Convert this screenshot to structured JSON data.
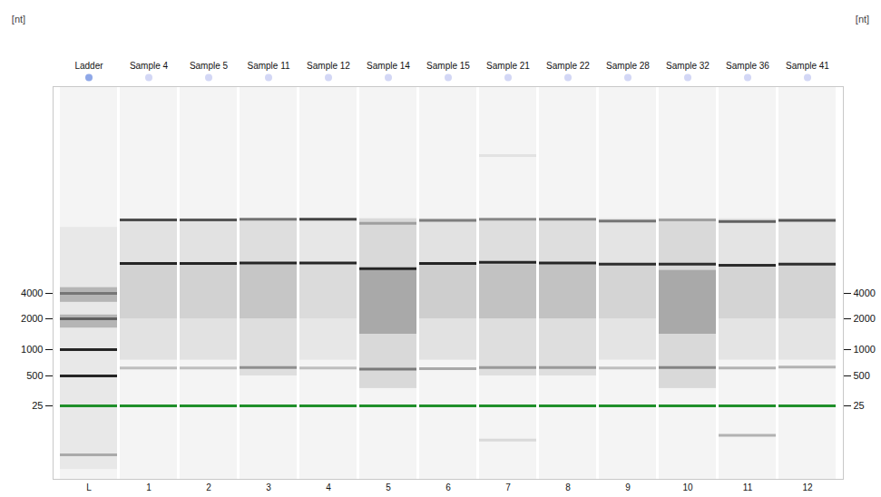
{
  "chart_data": {
    "type": "gel",
    "ylabel": "[nt]",
    "ylim": [
      10,
      40000
    ],
    "yticks": [
      25,
      500,
      1000,
      2000,
      4000
    ],
    "color": "#1a1a1a",
    "lanes": [
      {
        "name": "Ladder",
        "number": "L",
        "bands": [
          {
            "nt": 25,
            "intensity": 1,
            "color": "#1f8f2a"
          },
          {
            "nt": 500,
            "intensity": 0.95
          },
          {
            "nt": 1000,
            "intensity": 0.95
          },
          {
            "nt": 2000,
            "intensity": 0.55
          },
          {
            "nt": 4000,
            "intensity": 0.4
          },
          {
            "nt": 15,
            "intensity": 0.3
          }
        ],
        "smears": [
          {
            "from": 12,
            "to": 15500,
            "intensity": 0.05
          },
          {
            "from": 1700,
            "to": 2300,
            "intensity": 0.25
          },
          {
            "from": 3300,
            "to": 5000,
            "intensity": 0.25
          }
        ]
      },
      {
        "name": "Sample 4",
        "number": "1",
        "bands": [
          {
            "nt": 16800,
            "intensity": 0.75
          },
          {
            "nt": 9200,
            "intensity": 0.95
          },
          {
            "nt": 650,
            "intensity": 0.25
          },
          {
            "nt": 25,
            "intensity": 1,
            "color": "#1f8f2a"
          }
        ],
        "smears": [
          {
            "from": 800,
            "to": 17000,
            "intensity": 0.08
          },
          {
            "from": 2000,
            "to": 9000,
            "intensity": 0.08
          }
        ]
      },
      {
        "name": "Sample 5",
        "number": "2",
        "bands": [
          {
            "nt": 16800,
            "intensity": 0.7
          },
          {
            "nt": 9200,
            "intensity": 0.95
          },
          {
            "nt": 650,
            "intensity": 0.25
          },
          {
            "nt": 25,
            "intensity": 1,
            "color": "#1f8f2a"
          }
        ],
        "smears": [
          {
            "from": 800,
            "to": 17000,
            "intensity": 0.08
          },
          {
            "from": 2000,
            "to": 9000,
            "intensity": 0.08
          }
        ]
      },
      {
        "name": "Sample 11",
        "number": "3",
        "bands": [
          {
            "nt": 16900,
            "intensity": 0.55
          },
          {
            "nt": 9300,
            "intensity": 0.95
          },
          {
            "nt": 660,
            "intensity": 0.4
          },
          {
            "nt": 25,
            "intensity": 1,
            "color": "#1f8f2a"
          }
        ],
        "smears": [
          {
            "from": 500,
            "to": 17000,
            "intensity": 0.1
          },
          {
            "from": 2000,
            "to": 9000,
            "intensity": 0.12
          }
        ]
      },
      {
        "name": "Sample 12",
        "number": "4",
        "bands": [
          {
            "nt": 16900,
            "intensity": 0.8
          },
          {
            "nt": 9300,
            "intensity": 0.95
          },
          {
            "nt": 650,
            "intensity": 0.25
          },
          {
            "nt": 25,
            "intensity": 1,
            "color": "#1f8f2a"
          }
        ],
        "smears": [
          {
            "from": 800,
            "to": 17000,
            "intensity": 0.06
          },
          {
            "from": 2000,
            "to": 9000,
            "intensity": 0.06
          }
        ]
      },
      {
        "name": "Sample 14",
        "number": "5",
        "bands": [
          {
            "nt": 16200,
            "intensity": 0.3
          },
          {
            "nt": 8300,
            "intensity": 0.95
          },
          {
            "nt": 630,
            "intensity": 0.5
          },
          {
            "nt": 25,
            "intensity": 1,
            "color": "#1f8f2a"
          }
        ],
        "smears": [
          {
            "from": 300,
            "to": 17000,
            "intensity": 0.12
          },
          {
            "from": 1500,
            "to": 8000,
            "intensity": 0.25
          }
        ]
      },
      {
        "name": "Sample 15",
        "number": "6",
        "bands": [
          {
            "nt": 16700,
            "intensity": 0.5
          },
          {
            "nt": 9200,
            "intensity": 0.95
          },
          {
            "nt": 640,
            "intensity": 0.35
          },
          {
            "nt": 25,
            "intensity": 1,
            "color": "#1f8f2a"
          }
        ],
        "smears": [
          {
            "from": 800,
            "to": 17000,
            "intensity": 0.08
          },
          {
            "from": 2000,
            "to": 9000,
            "intensity": 0.1
          }
        ]
      },
      {
        "name": "Sample 21",
        "number": "7",
        "bands": [
          {
            "nt": 16900,
            "intensity": 0.45
          },
          {
            "nt": 9400,
            "intensity": 0.95
          },
          {
            "nt": 660,
            "intensity": 0.35
          },
          {
            "nt": 28000,
            "intensity": 0.08
          },
          {
            "nt": 18,
            "intensity": 0.12
          },
          {
            "nt": 25,
            "intensity": 1,
            "color": "#1f8f2a"
          }
        ],
        "smears": [
          {
            "from": 500,
            "to": 17000,
            "intensity": 0.1
          },
          {
            "from": 2000,
            "to": 9000,
            "intensity": 0.14
          }
        ]
      },
      {
        "name": "Sample 22",
        "number": "8",
        "bands": [
          {
            "nt": 16900,
            "intensity": 0.5
          },
          {
            "nt": 9300,
            "intensity": 0.95
          },
          {
            "nt": 660,
            "intensity": 0.35
          },
          {
            "nt": 25,
            "intensity": 1,
            "color": "#1f8f2a"
          }
        ],
        "smears": [
          {
            "from": 500,
            "to": 17000,
            "intensity": 0.1
          },
          {
            "from": 2000,
            "to": 9000,
            "intensity": 0.14
          }
        ]
      },
      {
        "name": "Sample 28",
        "number": "9",
        "bands": [
          {
            "nt": 16600,
            "intensity": 0.55
          },
          {
            "nt": 9100,
            "intensity": 0.9
          },
          {
            "nt": 650,
            "intensity": 0.25
          },
          {
            "nt": 25,
            "intensity": 1,
            "color": "#1f8f2a"
          }
        ],
        "smears": [
          {
            "from": 800,
            "to": 17000,
            "intensity": 0.07
          },
          {
            "from": 2000,
            "to": 9000,
            "intensity": 0.08
          }
        ]
      },
      {
        "name": "Sample 32",
        "number": "10",
        "bands": [
          {
            "nt": 16800,
            "intensity": 0.3
          },
          {
            "nt": 9100,
            "intensity": 0.9
          },
          {
            "nt": 660,
            "intensity": 0.45
          },
          {
            "nt": 25,
            "intensity": 1,
            "color": "#1f8f2a"
          }
        ],
        "smears": [
          {
            "from": 300,
            "to": 17000,
            "intensity": 0.12
          },
          {
            "from": 1500,
            "to": 8000,
            "intensity": 0.25
          }
        ]
      },
      {
        "name": "Sample 36",
        "number": "11",
        "bands": [
          {
            "nt": 16500,
            "intensity": 0.65
          },
          {
            "nt": 8900,
            "intensity": 0.9
          },
          {
            "nt": 650,
            "intensity": 0.3
          },
          {
            "nt": 19,
            "intensity": 0.3
          },
          {
            "nt": 25,
            "intensity": 1,
            "color": "#1f8f2a"
          }
        ],
        "smears": [
          {
            "from": 800,
            "to": 17000,
            "intensity": 0.07
          },
          {
            "from": 2000,
            "to": 9000,
            "intensity": 0.08
          }
        ]
      },
      {
        "name": "Sample 41",
        "number": "12",
        "bands": [
          {
            "nt": 16700,
            "intensity": 0.7
          },
          {
            "nt": 9100,
            "intensity": 0.9
          },
          {
            "nt": 670,
            "intensity": 0.3
          },
          {
            "nt": 25,
            "intensity": 1,
            "color": "#1f8f2a"
          }
        ],
        "smears": [
          {
            "from": 800,
            "to": 17000,
            "intensity": 0.07
          },
          {
            "from": 2000,
            "to": 9000,
            "intensity": 0.08
          }
        ]
      }
    ]
  }
}
